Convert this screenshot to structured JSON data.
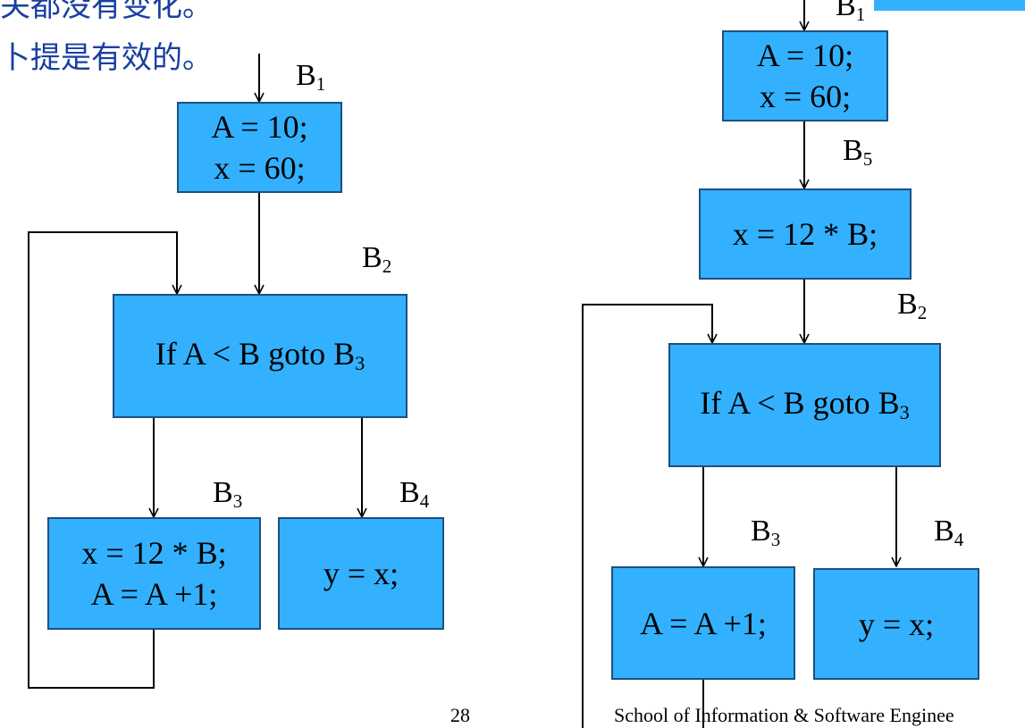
{
  "colors": {
    "box_fill": "#33b1ff",
    "box_border": "#1d4f80",
    "cjk_text": "#1a3fa0"
  },
  "header_text": {
    "line1": "关都没有变化。",
    "line2": "卜提是有效的。"
  },
  "left_graph": {
    "b1_label": {
      "letter": "B",
      "sub": "1"
    },
    "b1_lines": [
      "A = 10;",
      "x = 60;"
    ],
    "b2_label": {
      "letter": "B",
      "sub": "2"
    },
    "b2_text": {
      "main": "If A < B goto B",
      "sub": "3"
    },
    "b3_label": {
      "letter": "B",
      "sub": "3"
    },
    "b3_lines": [
      "x = 12 * B;",
      "A = A +1;"
    ],
    "b4_label": {
      "letter": "B",
      "sub": "4"
    },
    "b4_text": "y = x;"
  },
  "right_graph": {
    "b1_label": {
      "letter": "B",
      "sub": "1"
    },
    "b1_lines": [
      "A = 10;",
      "x = 60;"
    ],
    "b5_label": {
      "letter": "B",
      "sub": "5"
    },
    "b5_text": "x = 12 * B;",
    "b2_label": {
      "letter": "B",
      "sub": "2"
    },
    "b2_text": {
      "main": "If A < B goto B",
      "sub": "3"
    },
    "b3_label": {
      "letter": "B",
      "sub": "3"
    },
    "b3_text": "A = A +1;",
    "b4_label": {
      "letter": "B",
      "sub": "4"
    },
    "b4_text": "y = x;"
  },
  "footer": {
    "page_number": "28",
    "school": "School of Information & Software Enginee"
  }
}
